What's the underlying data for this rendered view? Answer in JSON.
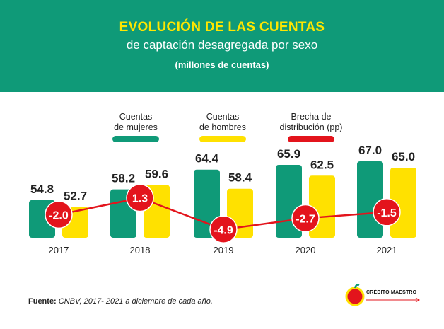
{
  "header": {
    "title": "EVOLUCIÓN DE LAS CUENTAS",
    "subtitle": "de captación desagregada por sexo",
    "unit": "(millones de cuentas)"
  },
  "legend": [
    {
      "line1": "Cuentas",
      "line2": "de mujeres",
      "color": "#0f9a78"
    },
    {
      "line1": "Cuentas",
      "line2": "de hombres",
      "color": "#ffe100"
    },
    {
      "line1": "Brecha de",
      "line2": "distribución (pp)",
      "color": "#e3141c"
    }
  ],
  "chart_data": {
    "type": "bar",
    "title": "EVOLUCIÓN DE LAS CUENTAS de captación desagregada por sexo",
    "ylabel": "millones de cuentas",
    "categories": [
      "2017",
      "2018",
      "2019",
      "2020",
      "2021"
    ],
    "series": [
      {
        "name": "Cuentas de mujeres",
        "values": [
          54.8,
          58.2,
          64.4,
          65.9,
          67.0
        ],
        "labels": [
          "54.8",
          "58.2",
          "64.4",
          "65.9",
          "67.0"
        ],
        "color": "#0f9a78"
      },
      {
        "name": "Cuentas de hombres",
        "values": [
          52.7,
          59.6,
          58.4,
          62.5,
          65.0
        ],
        "labels": [
          "52.7",
          "59.6",
          "58.4",
          "62.5",
          "65.0"
        ],
        "color": "#ffe100"
      },
      {
        "name": "Brecha de distribución (pp)",
        "type": "line",
        "values": [
          -2.0,
          1.3,
          -4.9,
          -2.7,
          -1.5
        ],
        "labels": [
          "-2.0",
          "1.3",
          "-4.9",
          "-2.7",
          "-1.5"
        ],
        "color": "#e3141c"
      }
    ]
  },
  "footer": {
    "source_label": "Fuente:",
    "source_text": "CNBV, 2017- 2021 a diciembre de cada año.",
    "logo_text": "CRÉDITO MAESTRO"
  }
}
